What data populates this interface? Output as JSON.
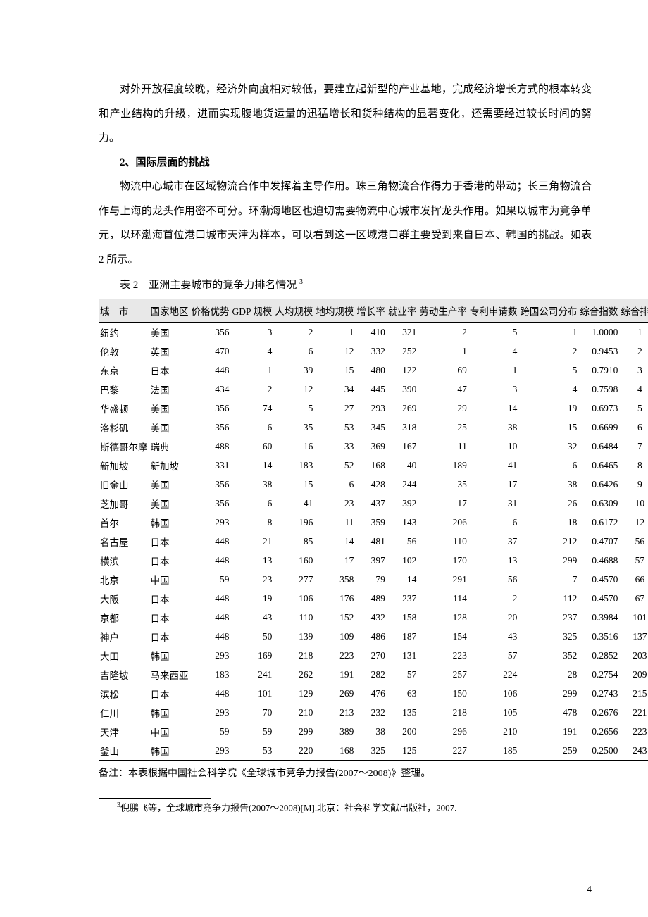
{
  "paragraph_intro": "对外开放程度较晚，经济外向度相对较低，要建立起新型的产业基地，完成经济增长方式的根本转变和产业结构的升级，进而实现腹地货运量的迅猛增长和货种结构的显著变化，还需要经过较长时间的努力。",
  "section_heading": "2、国际层面的挑战",
  "paragraph_body": "物流中心城市在区域物流合作中发挥着主导作用。珠三角物流合作得力于香港的带动；长三角物流合作与上海的龙头作用密不可分。环渤海地区也迫切需要物流中心城市发挥龙头作用。如果以城市为竞争单元，以环渤海首位港口城市天津为样本，可以看到这一区域港口群主要受到来自日本、韩国的挑战。如表 2 所示。",
  "table": {
    "type": "table",
    "caption_prefix": "表 2",
    "caption_title": "亚洲主要城市的竞争力排名情况",
    "caption_sup": "3",
    "header_background": "#e8e8e8",
    "border_color": "#000000",
    "fontsize": 13.5,
    "columns": [
      "城　市",
      "国家地区",
      "价格优势",
      "GDP 规模",
      "人均规模",
      "地均规模",
      "增长率",
      "就业率",
      "劳动生产率",
      "专利申请数",
      "跨国公司分布",
      "综合指数",
      "综合排名"
    ],
    "rows": [
      [
        "纽约",
        "美国",
        "356",
        "3",
        "2",
        "1",
        "410",
        "321",
        "2",
        "5",
        "1",
        "1.0000",
        "1"
      ],
      [
        "伦敦",
        "英国",
        "470",
        "4",
        "6",
        "12",
        "332",
        "252",
        "1",
        "4",
        "2",
        "0.9453",
        "2"
      ],
      [
        "东京",
        "日本",
        "448",
        "1",
        "39",
        "15",
        "480",
        "122",
        "69",
        "1",
        "5",
        "0.7910",
        "3"
      ],
      [
        "巴黎",
        "法国",
        "434",
        "2",
        "12",
        "34",
        "445",
        "390",
        "47",
        "3",
        "4",
        "0.7598",
        "4"
      ],
      [
        "华盛顿",
        "美国",
        "356",
        "74",
        "5",
        "27",
        "293",
        "269",
        "29",
        "14",
        "19",
        "0.6973",
        "5"
      ],
      [
        "洛杉矶",
        "美国",
        "356",
        "6",
        "35",
        "53",
        "345",
        "318",
        "25",
        "38",
        "15",
        "0.6699",
        "6"
      ],
      [
        "斯德哥尔摩",
        "瑞典",
        "488",
        "60",
        "16",
        "33",
        "369",
        "167",
        "11",
        "10",
        "32",
        "0.6484",
        "7"
      ],
      [
        "新加坡",
        "新加坡",
        "331",
        "14",
        "183",
        "52",
        "168",
        "40",
        "189",
        "41",
        "6",
        "0.6465",
        "8"
      ],
      [
        "旧金山",
        "美国",
        "356",
        "38",
        "15",
        "6",
        "428",
        "244",
        "35",
        "17",
        "38",
        "0.6426",
        "9"
      ],
      [
        "芝加哥",
        "美国",
        "356",
        "6",
        "41",
        "23",
        "437",
        "392",
        "17",
        "31",
        "26",
        "0.6309",
        "10"
      ],
      [
        "首尔",
        "韩国",
        "293",
        "8",
        "196",
        "11",
        "359",
        "143",
        "206",
        "6",
        "18",
        "0.6172",
        "12"
      ],
      [
        "名古屋",
        "日本",
        "448",
        "21",
        "85",
        "14",
        "481",
        "56",
        "110",
        "37",
        "212",
        "0.4707",
        "56"
      ],
      [
        "横滨",
        "日本",
        "448",
        "13",
        "160",
        "17",
        "397",
        "102",
        "170",
        "13",
        "299",
        "0.4688",
        "57"
      ],
      [
        "北京",
        "中国",
        "59",
        "23",
        "277",
        "358",
        "79",
        "14",
        "291",
        "56",
        "7",
        "0.4570",
        "66"
      ],
      [
        "大阪",
        "日本",
        "448",
        "19",
        "106",
        "176",
        "489",
        "237",
        "114",
        "2",
        "112",
        "0.4570",
        "67"
      ],
      [
        "京都",
        "日本",
        "448",
        "43",
        "110",
        "152",
        "432",
        "158",
        "128",
        "20",
        "237",
        "0.3984",
        "101"
      ],
      [
        "神户",
        "日本",
        "448",
        "50",
        "139",
        "109",
        "486",
        "187",
        "154",
        "43",
        "325",
        "0.3516",
        "137"
      ],
      [
        "大田",
        "韩国",
        "293",
        "169",
        "218",
        "223",
        "270",
        "131",
        "223",
        "57",
        "352",
        "0.2852",
        "203"
      ],
      [
        "吉隆坡",
        "马来西亚",
        "183",
        "241",
        "262",
        "191",
        "282",
        "57",
        "257",
        "224",
        "28",
        "0.2754",
        "209"
      ],
      [
        "滨松",
        "日本",
        "448",
        "101",
        "129",
        "269",
        "476",
        "63",
        "150",
        "106",
        "299",
        "0.2743",
        "215"
      ],
      [
        "仁川",
        "韩国",
        "293",
        "70",
        "210",
        "213",
        "232",
        "135",
        "218",
        "105",
        "478",
        "0.2676",
        "221"
      ],
      [
        "天津",
        "中国",
        "59",
        "59",
        "299",
        "389",
        "38",
        "200",
        "296",
        "210",
        "191",
        "0.2656",
        "223"
      ],
      [
        "釜山",
        "韩国",
        "293",
        "53",
        "220",
        "168",
        "325",
        "125",
        "227",
        "185",
        "259",
        "0.2500",
        "243"
      ]
    ],
    "note": "备注：本表根据中国社会科学院《全球城市竞争力报告(2007～2008)》整理。"
  },
  "footnote": {
    "marker": "3",
    "text": "倪鹏飞等，全球城市竞争力报告(2007～2008)[M].北京：社会科学文献出版社，2007."
  },
  "page_number": "4"
}
